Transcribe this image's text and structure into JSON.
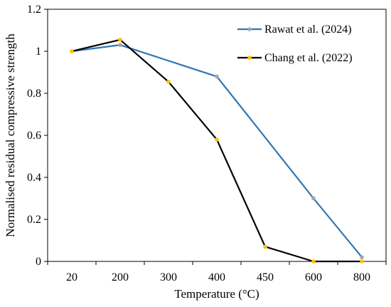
{
  "chart_data": {
    "type": "line",
    "title": "",
    "xlabel": "Temperature (°C)",
    "ylabel": "Normalised residual compressive strength",
    "categories": [
      "20",
      "200",
      "300",
      "400",
      "450",
      "600",
      "800"
    ],
    "ylim": [
      0,
      1.2
    ],
    "yticks": [
      "0",
      "0.2",
      "0.4",
      "0.6",
      "0.8",
      "1",
      "1.2"
    ],
    "grid": false,
    "legend_position": "top-right",
    "series": [
      {
        "name": "Rawat et al. (2024)",
        "line_color": "#2f75b5",
        "marker_color": "#a5a5a5",
        "points": [
          {
            "x": "20",
            "y": 1.0
          },
          {
            "x": "200",
            "y": 1.03
          },
          {
            "x": "400",
            "y": 0.88
          },
          {
            "x": "600",
            "y": 0.3
          },
          {
            "x": "800",
            "y": 0.02
          }
        ]
      },
      {
        "name": "Chang et al. (2022)",
        "line_color": "#000000",
        "marker_color": "#ffc000",
        "points": [
          {
            "x": "20",
            "y": 1.0
          },
          {
            "x": "200",
            "y": 1.055
          },
          {
            "x": "300",
            "y": 0.855
          },
          {
            "x": "400",
            "y": 0.58
          },
          {
            "x": "450",
            "y": 0.07
          },
          {
            "x": "600",
            "y": 0.0
          },
          {
            "x": "800",
            "y": 0.0
          }
        ]
      }
    ]
  }
}
